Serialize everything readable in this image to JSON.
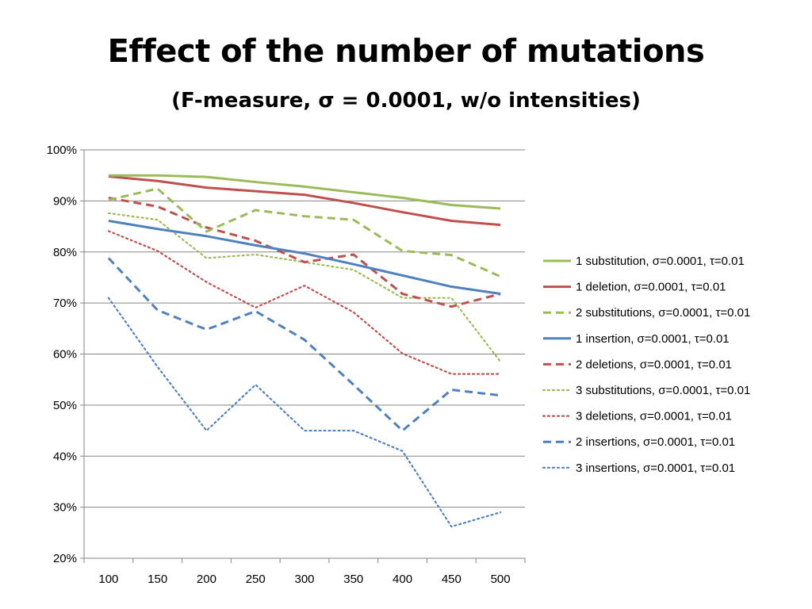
{
  "slide": {
    "title": "Effect of the number of mutations",
    "subtitle": "(F-measure, σ = 0.0001, w/o intensities)"
  },
  "chart_data": {
    "type": "line",
    "title": "",
    "xlabel": "",
    "ylabel": "",
    "categories": [
      "100",
      "150",
      "200",
      "250",
      "300",
      "350",
      "400",
      "450",
      "500"
    ],
    "y_ticks": [
      "20%",
      "30%",
      "40%",
      "50%",
      "60%",
      "70%",
      "80%",
      "90%",
      "100%"
    ],
    "ylim": [
      20,
      100
    ],
    "grid": "horizontal",
    "legend_position": "right",
    "series": [
      {
        "name": "1 substitution, σ=0.0001, τ=0.01",
        "color": "#9bbb59",
        "style": "solid",
        "values": [
          95,
          95,
          94.7,
          93.7,
          92.8,
          91.7,
          90.6,
          89.2,
          88.5
        ]
      },
      {
        "name": "1 deletion, σ=0.0001, τ=0.01",
        "color": "#c0504d",
        "style": "solid",
        "values": [
          94.8,
          93.9,
          92.6,
          91.9,
          91.2,
          89.6,
          87.8,
          86.1,
          85.3
        ]
      },
      {
        "name": "2 substitutions, σ=0.0001, τ=0.01",
        "color": "#9bbb59",
        "style": "dash",
        "values": [
          90.2,
          92.4,
          84.0,
          88.2,
          87.0,
          86.3,
          80.2,
          79.4,
          75.2
        ]
      },
      {
        "name": "1 insertion, σ=0.0001, τ=0.01",
        "color": "#4f81bd",
        "style": "solid",
        "values": [
          86.1,
          84.5,
          83.1,
          81.3,
          79.7,
          77.6,
          75.4,
          73.2,
          71.8
        ]
      },
      {
        "name": "2 deletions, σ=0.0001, τ=0.01",
        "color": "#c0504d",
        "style": "dash",
        "values": [
          90.6,
          88.9,
          84.8,
          82.2,
          78.0,
          79.5,
          71.8,
          69.3,
          71.8
        ]
      },
      {
        "name": "3 substitutions, σ=0.0001, τ=0.01",
        "color": "#9bbb59",
        "style": "dot",
        "values": [
          87.6,
          86.3,
          78.8,
          79.5,
          78.0,
          76.5,
          71.0,
          71.0,
          58.5
        ]
      },
      {
        "name": "3 deletions, σ=0.0001, τ=0.01",
        "color": "#c0504d",
        "style": "dot",
        "values": [
          84.1,
          80.2,
          74.1,
          69.1,
          73.4,
          68.2,
          60.1,
          56.1,
          56.1
        ]
      },
      {
        "name": "2 insertions, σ=0.0001, τ=0.01",
        "color": "#4f81bd",
        "style": "dash",
        "values": [
          78.8,
          68.6,
          64.8,
          68.4,
          62.8,
          54.0,
          45.0,
          53.0,
          51.9
        ]
      },
      {
        "name": "3 insertions, σ=0.0001, τ=0.01",
        "color": "#4f81bd",
        "style": "dot",
        "values": [
          71.0,
          57.5,
          45.0,
          54.0,
          45.0,
          45.0,
          41.0,
          26.2,
          29.0
        ]
      }
    ]
  }
}
